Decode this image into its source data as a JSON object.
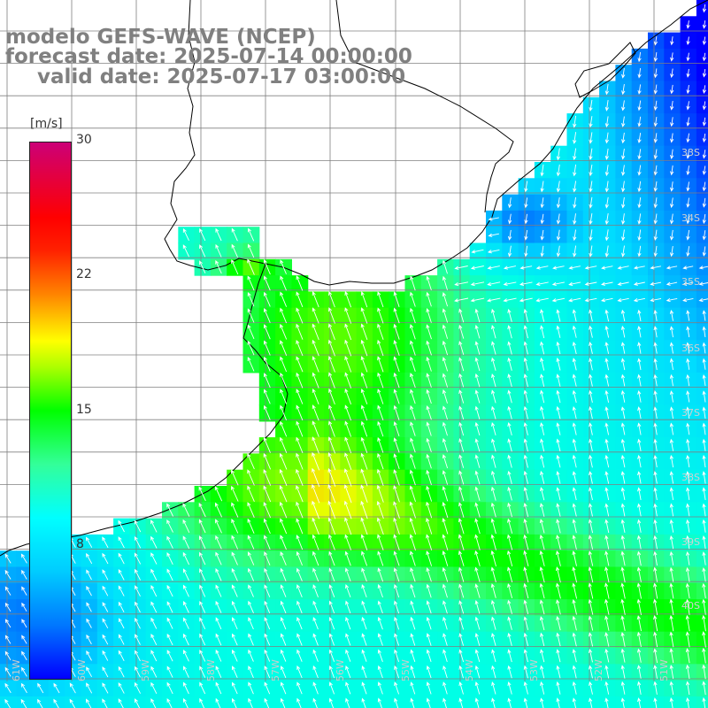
{
  "title": {
    "line1": "modelo GEFS-WAVE (NCEP)",
    "line2": "forecast date: 2025-07-14 00:00:00",
    "line3": "valid date: 2025-07-17 03:00:00"
  },
  "colorbar": {
    "unit": "[m/s]",
    "ticks": [
      "30",
      "22",
      "15",
      "8"
    ],
    "tick_values": [
      30,
      22,
      15,
      8
    ]
  },
  "lat_labels": [
    "33S",
    "34S",
    "35S",
    "36S",
    "37S",
    "38S",
    "39S",
    "40S"
  ],
  "lon_labels": [
    "61W",
    "60W",
    "59W",
    "58W",
    "57W",
    "56W",
    "55W",
    "54W",
    "53W",
    "52W",
    "51W"
  ],
  "colors": {
    "ocean_low": "#0000ff",
    "ocean_mid": "#00ffff",
    "ocean_high": "#00ff00",
    "peak": "#ffff00",
    "land": "#ffffff",
    "coast": "#000000",
    "grid": "#808080",
    "arrows": "#ffffff"
  }
}
